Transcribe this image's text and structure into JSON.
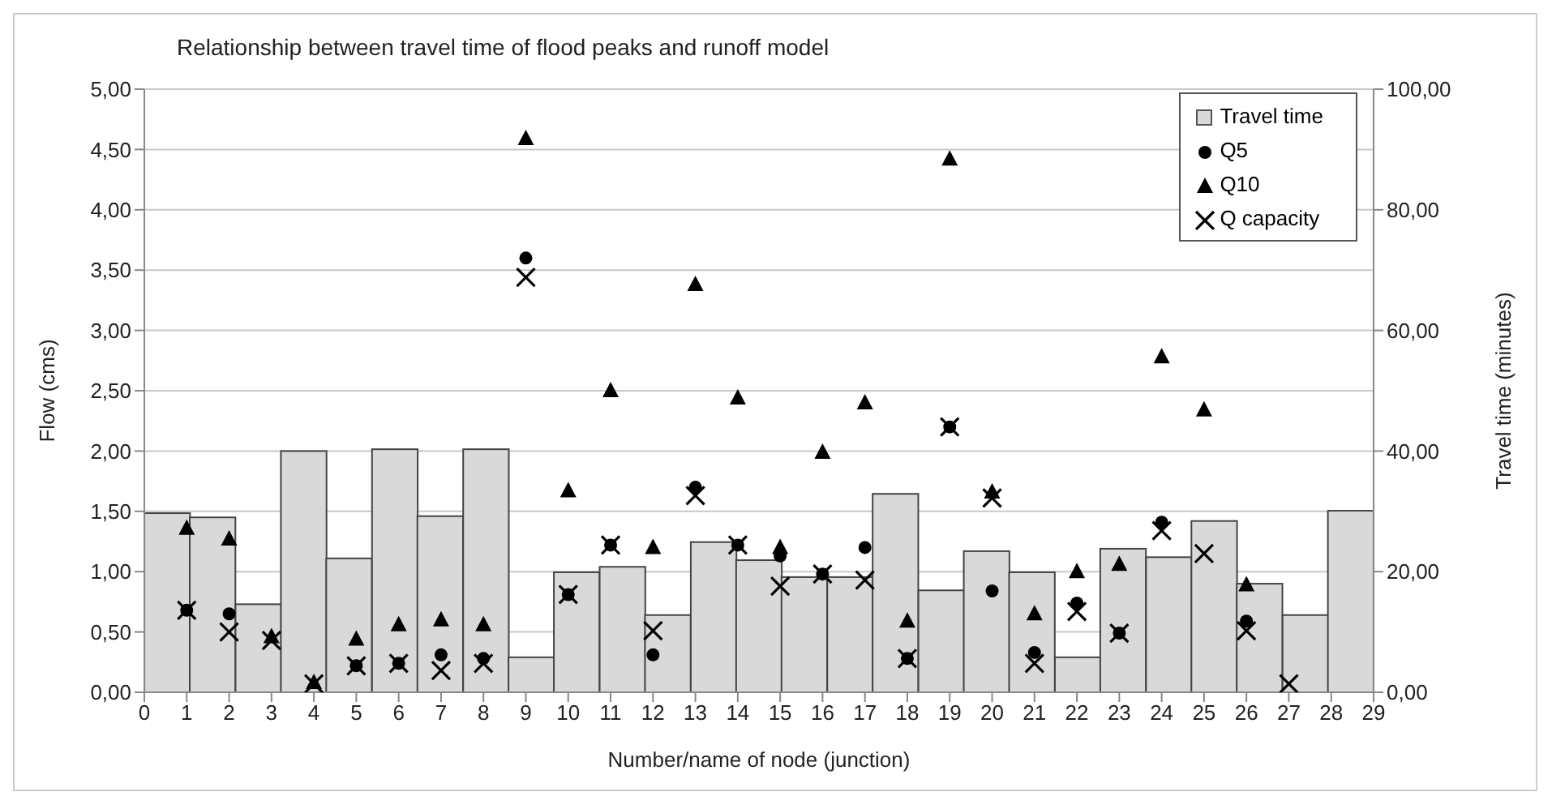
{
  "chart_data": {
    "type": "scatter",
    "title": "Relationship  between travel time of flood peaks and runoff model",
    "xlabel": "Number/name of node (junction)",
    "ylabel": "Flow (cms)",
    "y2label": "Travel time (minutes)",
    "xlim": [
      0,
      29
    ],
    "xticks": [
      0,
      1,
      2,
      3,
      4,
      5,
      6,
      7,
      8,
      9,
      10,
      11,
      12,
      13,
      14,
      15,
      16,
      17,
      18,
      19,
      20,
      21,
      22,
      23,
      24,
      25,
      26,
      27,
      28,
      29
    ],
    "ylim": [
      0,
      5
    ],
    "yticks": [
      {
        "value": 0,
        "label": "0,00"
      },
      {
        "value": 0.5,
        "label": "0,50"
      },
      {
        "value": 1,
        "label": "1,00"
      },
      {
        "value": 1.5,
        "label": "1,50"
      },
      {
        "value": 2,
        "label": "2,00"
      },
      {
        "value": 2.5,
        "label": "2,50"
      },
      {
        "value": 3,
        "label": "3,00"
      },
      {
        "value": 3.5,
        "label": "3,50"
      },
      {
        "value": 4,
        "label": "4,00"
      },
      {
        "value": 4.5,
        "label": "4,50"
      },
      {
        "value": 5,
        "label": "5,00"
      }
    ],
    "y2lim": [
      0,
      100
    ],
    "y2ticks": [
      {
        "value": 0,
        "label": "0,00"
      },
      {
        "value": 20,
        "label": "20,00"
      },
      {
        "value": 40,
        "label": "40,00"
      },
      {
        "value": 60,
        "label": "60,00"
      },
      {
        "value": 80,
        "label": "80,00"
      },
      {
        "value": 100,
        "label": "100,00"
      }
    ],
    "grid": "y",
    "legend": "top right",
    "series": [
      {
        "name": "Travel time",
        "type": "bar",
        "axis": "y2",
        "color": "#d9d9d9",
        "x": [
          0.54,
          1.61,
          2.69,
          3.76,
          4.83,
          5.91,
          6.98,
          8.06,
          9.13,
          10.2,
          11.28,
          12.35,
          13.43,
          14.5,
          15.57,
          16.65,
          17.72,
          18.8,
          19.87,
          20.94,
          22.02,
          23.09,
          24.17,
          25.24,
          26.31,
          27.39,
          28.46
        ],
        "values": [
          29.7,
          29.0,
          14.6,
          40.0,
          22.2,
          40.3,
          29.2,
          40.3,
          5.8,
          19.9,
          20.8,
          12.8,
          24.9,
          21.9,
          19.1,
          19.1,
          32.9,
          16.9,
          23.4,
          19.9,
          5.8,
          23.8,
          22.4,
          28.4,
          18.0,
          12.8,
          30.1
        ]
      },
      {
        "name": "Q5",
        "marker": "circle",
        "color": "#000000",
        "x": [
          1,
          2,
          3,
          4,
          5,
          6,
          7,
          8,
          9,
          10,
          11,
          12,
          13,
          14,
          15,
          16,
          17,
          18,
          19,
          20,
          21,
          22,
          23,
          24,
          25,
          26
        ],
        "values": [
          0.68,
          0.65,
          null,
          null,
          0.22,
          0.24,
          0.31,
          0.28,
          3.6,
          0.81,
          1.22,
          0.31,
          1.7,
          1.22,
          1.13,
          0.98,
          1.2,
          0.28,
          2.2,
          0.84,
          0.33,
          0.74,
          0.49,
          1.41,
          null,
          0.59
        ]
      },
      {
        "name": "Q10",
        "marker": "triangle",
        "color": "#000000",
        "x": [
          1,
          2,
          3,
          4,
          5,
          6,
          7,
          8,
          9,
          10,
          11,
          12,
          13,
          14,
          15,
          16,
          17,
          18,
          19,
          20,
          21,
          22,
          23,
          24,
          25,
          26
        ],
        "values": [
          1.36,
          1.27,
          0.46,
          0.08,
          0.44,
          0.56,
          0.6,
          0.56,
          4.59,
          1.67,
          2.5,
          1.2,
          3.38,
          2.44,
          1.2,
          1.99,
          2.4,
          0.59,
          4.42,
          1.66,
          0.65,
          1.0,
          1.06,
          2.78,
          2.34,
          0.89
        ]
      },
      {
        "name": "Q capacity",
        "marker": "cross",
        "color": "#000000",
        "x": [
          1,
          2,
          3,
          4,
          5,
          6,
          7,
          8,
          9,
          10,
          11,
          12,
          13,
          14,
          15,
          16,
          17,
          18,
          19,
          20,
          21,
          22,
          23,
          24,
          25,
          26,
          27
        ],
        "values": [
          0.68,
          0.5,
          0.43,
          0.07,
          0.22,
          0.24,
          0.18,
          0.24,
          3.44,
          0.81,
          1.22,
          0.51,
          1.63,
          1.22,
          0.88,
          0.98,
          0.93,
          0.28,
          2.2,
          1.61,
          0.24,
          0.67,
          0.49,
          1.34,
          1.15,
          0.51,
          0.07
        ]
      }
    ]
  }
}
